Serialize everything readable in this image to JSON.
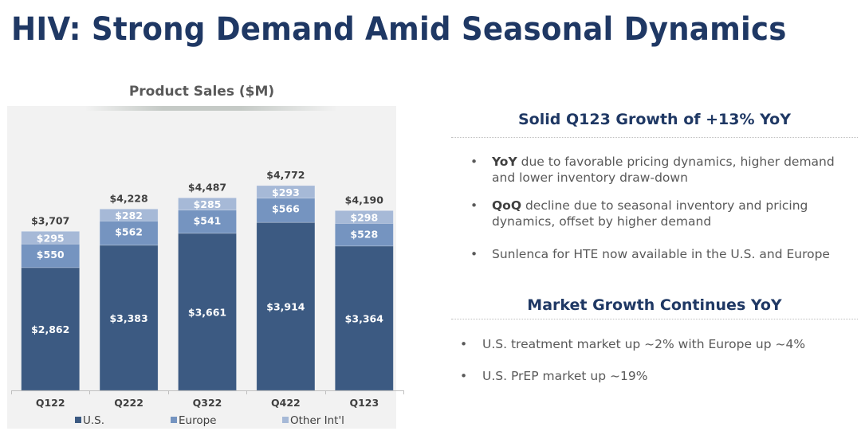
{
  "slide": {
    "title": "HIV: Strong Demand Amid Seasonal Dynamics"
  },
  "chart_data": {
    "type": "bar",
    "stacked": true,
    "title": "Product Sales ($M)",
    "xlabel": "",
    "ylabel": "",
    "categories": [
      "Q122",
      "Q222",
      "Q322",
      "Q422",
      "Q123"
    ],
    "series": [
      {
        "name": "U.S.",
        "color": "#3c5a82",
        "values": [
          2862,
          3383,
          3661,
          3914,
          3364
        ],
        "labels": [
          "$2,862",
          "$3,383",
          "$3,661",
          "$3,914",
          "$3,364"
        ]
      },
      {
        "name": "Europe",
        "color": "#7594c0",
        "values": [
          550,
          562,
          541,
          566,
          528
        ],
        "labels": [
          "$550",
          "$562",
          "$541",
          "$566",
          "$528"
        ]
      },
      {
        "name": "Other Int'l",
        "color": "#a6b9d7",
        "values": [
          295,
          282,
          285,
          293,
          298
        ],
        "labels": [
          "$295",
          "$282",
          "$285",
          "$293",
          "$298"
        ]
      }
    ],
    "totals": [
      3707,
      4228,
      4487,
      4772,
      4190
    ],
    "total_labels": [
      "$3,707",
      "$4,228",
      "$4,487",
      "$4,772",
      "$4,190"
    ],
    "ylim": [
      0,
      4772
    ],
    "grid": false,
    "legend": {
      "placement": "bottom",
      "items": [
        "U.S.",
        "Europe",
        "Other Int'l"
      ]
    }
  },
  "sections": [
    {
      "heading": "Solid Q123 Growth of +13% YoY",
      "bullets": [
        {
          "bold": "YoY",
          "line1": " due to favorable pricing dynamics, higher demand",
          "line2": "and lower inventory draw-down"
        },
        {
          "bold": "QoQ",
          "line1": " decline due to seasonal inventory and pricing",
          "line2": "dynamics, offset by higher demand"
        },
        {
          "bold": "",
          "line1": "Sunlenca for HTE now available in the U.S. and Europe",
          "line2": ""
        }
      ]
    },
    {
      "heading": "Market Growth Continues YoY",
      "bullets": [
        {
          "bold": "",
          "line1": "U.S. treatment market up ~2% with Europe up ~4%",
          "line2": ""
        },
        {
          "bold": "",
          "line1": "U.S. PrEP market up ~19%",
          "line2": ""
        }
      ]
    }
  ],
  "bullet_glyph": "•"
}
